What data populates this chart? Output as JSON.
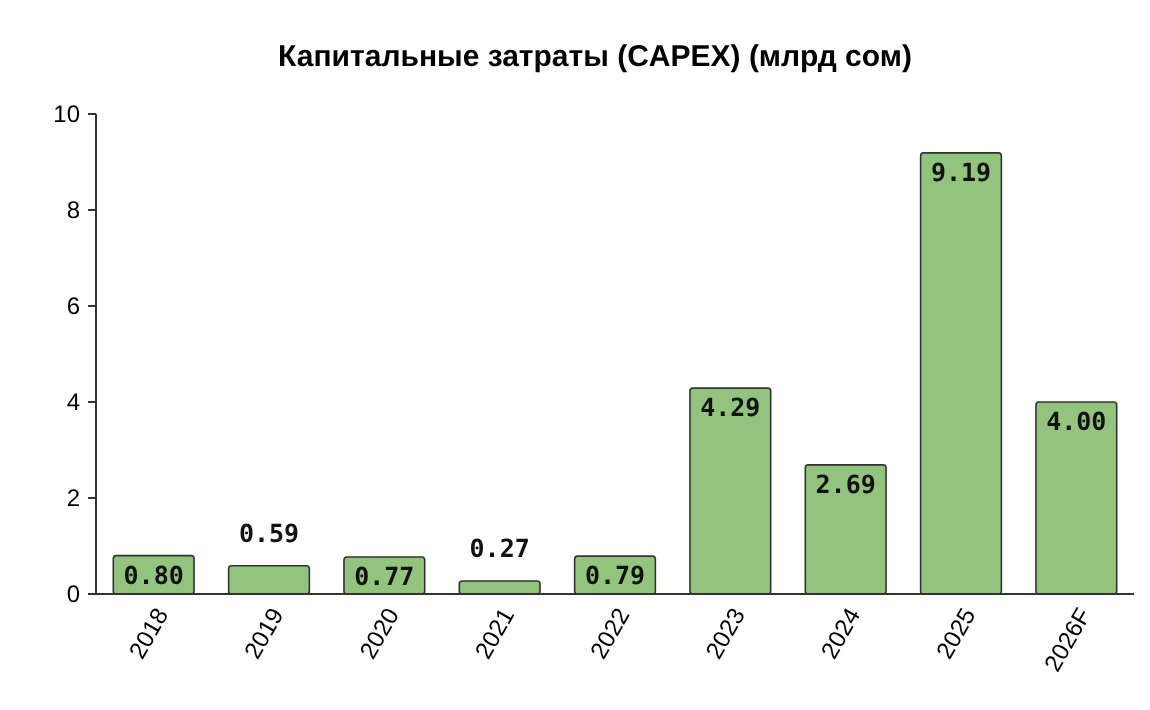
{
  "chart_data": {
    "type": "bar",
    "title": "Капитальные затраты (CAPEX) (млрд сом)",
    "categories": [
      "2018",
      "2019",
      "2020",
      "2021",
      "2022",
      "2023",
      "2024",
      "2025",
      "2026F"
    ],
    "values": [
      0.8,
      0.59,
      0.77,
      0.27,
      0.79,
      4.29,
      2.69,
      9.19,
      4.0
    ],
    "value_labels": [
      "0.80",
      "0.59",
      "0.77",
      "0.27",
      "0.79",
      "4.29",
      "2.69",
      "9.19",
      "4.00"
    ],
    "color": "#93c47d",
    "ylim": [
      0,
      10
    ],
    "yticks": [
      0,
      2,
      4,
      6,
      8,
      10
    ]
  }
}
